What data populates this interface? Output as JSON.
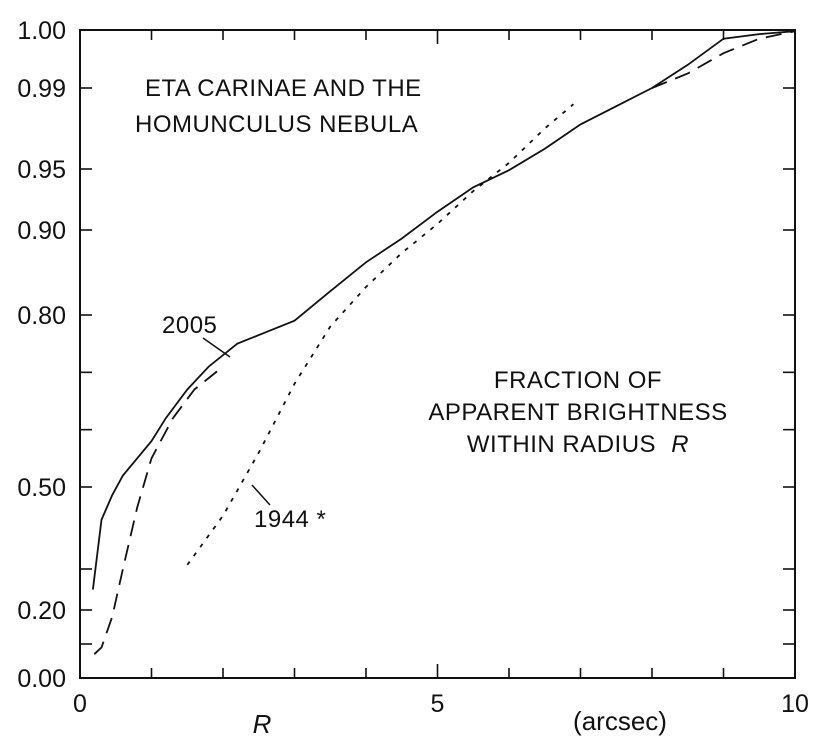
{
  "chart_data": {
    "type": "line",
    "title_lines": [
      "ETA CARINAE AND THE",
      "HOMUNCULUS NEBULA"
    ],
    "description_lines": [
      "FRACTION OF",
      "APPARENT BRIGHTNESS",
      "WITHIN RADIUS"
    ],
    "description_var": "R",
    "xlabel": "R",
    "xunit": "(arcsec)",
    "xlim": [
      0,
      10
    ],
    "x_ticks_labeled": [
      0,
      5,
      10
    ],
    "y_ticks_labeled": [
      "0.00",
      "0.20",
      "0.50",
      "0.80",
      "0.90",
      "0.95",
      "0.99",
      "1.00"
    ],
    "series": [
      {
        "name": "2005",
        "style": "solid",
        "x": [
          0.18,
          0.3,
          0.45,
          0.6,
          0.8,
          1.0,
          1.2,
          1.5,
          1.8,
          2.2,
          2.6,
          3.0,
          3.5,
          4.0,
          4.5,
          5.0,
          5.5,
          6.0,
          6.5,
          7.0,
          7.5,
          8.0,
          8.5,
          9.0,
          9.5,
          10.0
        ],
        "y": [
          0.25,
          0.42,
          0.48,
          0.52,
          0.55,
          0.58,
          0.62,
          0.67,
          0.71,
          0.75,
          0.77,
          0.79,
          0.828,
          0.862,
          0.89,
          0.915,
          0.935,
          0.949,
          0.96,
          0.972,
          0.981,
          0.99,
          0.994,
          0.9985,
          0.9993,
          0.9998
        ]
      },
      {
        "style": "dashed",
        "x": [
          0.2,
          0.3,
          0.45,
          0.6,
          0.8,
          1.0,
          1.3,
          1.6,
          2.0,
          8.0,
          8.5,
          9.0,
          9.5,
          10.0
        ],
        "y": [
          0.07,
          0.09,
          0.18,
          0.3,
          0.45,
          0.55,
          0.62,
          0.67,
          0.71,
          0.99,
          0.9925,
          0.996,
          0.9985,
          0.9998
        ]
      },
      {
        "name": "1944 *",
        "style": "dotted",
        "x": [
          1.5,
          2.0,
          2.5,
          3.0,
          3.5,
          4.0,
          4.5,
          5.0,
          5.5,
          6.0,
          6.5,
          6.9
        ],
        "y": [
          0.31,
          0.43,
          0.56,
          0.68,
          0.78,
          0.833,
          0.873,
          0.905,
          0.932,
          0.953,
          0.97,
          0.982
        ]
      }
    ]
  }
}
